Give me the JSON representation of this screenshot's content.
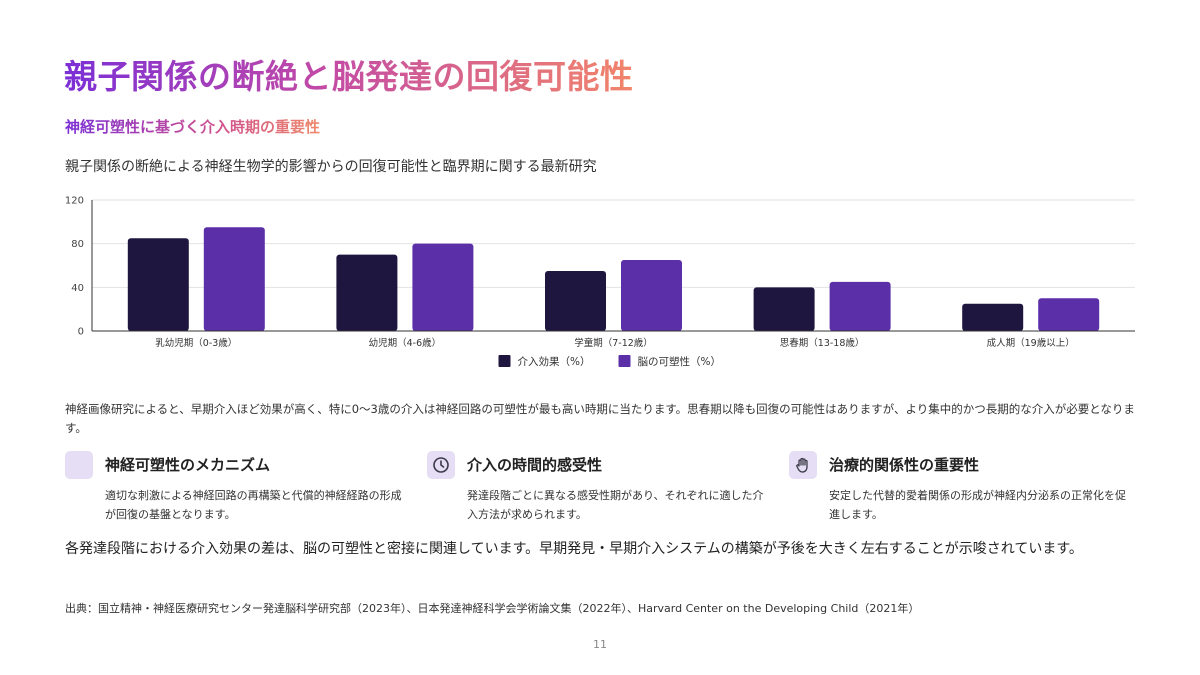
{
  "title": "親子関係の断絶と脳発達の回復可能性",
  "subtitle": "神経可塑性に基づく介入時期の重要性",
  "chart_heading": "親子関係の断絶による神経生物学的影響からの回復可能性と臨界期に関する最新研究",
  "chart_data": {
    "type": "bar",
    "categories": [
      "乳幼児期（0-3歳）",
      "幼児期（4-6歳）",
      "学童期（7-12歳）",
      "思春期（13-18歳）",
      "成人期（19歳以上）"
    ],
    "series": [
      {
        "name": "介入効果（%）",
        "values": [
          85,
          70,
          55,
          40,
          25
        ],
        "color": "#1f1640"
      },
      {
        "name": "脳の可塑性（%）",
        "values": [
          95,
          80,
          65,
          45,
          30
        ],
        "color": "#5b2fa8"
      }
    ],
    "ylim": [
      0,
      120
    ],
    "yticks": [
      0,
      40,
      80,
      120
    ],
    "grid": true,
    "legend": "bottom-center"
  },
  "body_text": "神経画像研究によると、早期介入ほど効果が高く、特に0〜3歳の介入は神経回路の可塑性が最も高い時期に当たります。思春期以降も回復の可能性はありますが、より集中的かつ長期的な介入が必要となります。",
  "features": [
    {
      "icon": "brain-icon",
      "title": "神経可塑性のメカニズム",
      "desc": "適切な刺激による神経回路の再構築と代償的神経経路の形成が回復の基盤となります。"
    },
    {
      "icon": "clock-icon",
      "title": "介入の時間的感受性",
      "desc": "発達段階ごとに異なる感受性期があり、それぞれに適した介入方法が求められます。"
    },
    {
      "icon": "hand-icon",
      "title": "治療的関係性の重要性",
      "desc": "安定した代替的愛着関係の形成が神経内分泌系の正常化を促進します。"
    }
  ],
  "conclusion": "各発達段階における介入効果の差は、脳の可塑性と密接に関連しています。早期発見・早期介入システムの構築が予後を大きく左右することが示唆されています。",
  "source": "出典：国立精神・神経医療研究センター発達脳科学研究部（2023年）、日本発達神経科学会学術論文集（2022年）、Harvard Center on the Developing Child（2021年）",
  "page_number": "11",
  "colors": {
    "accent_purple": "#7b2fd6",
    "accent_coral": "#f2856a",
    "icon_bg": "#e6def5"
  }
}
